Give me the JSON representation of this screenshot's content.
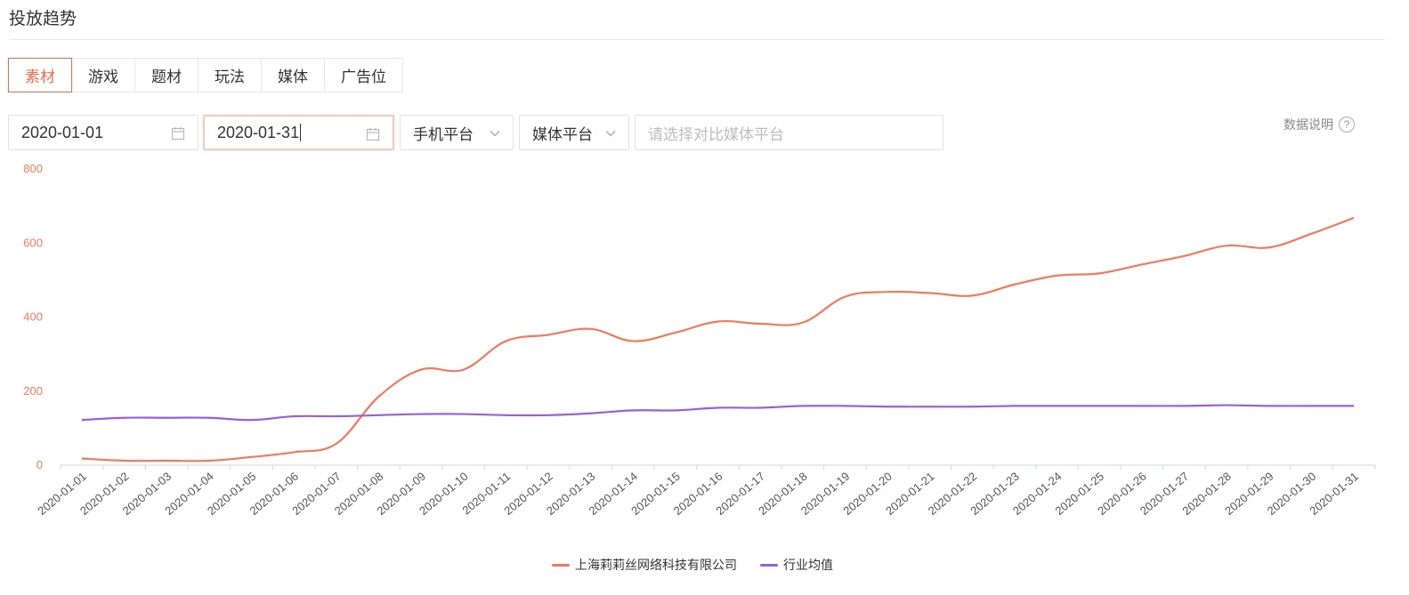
{
  "header": {
    "title": "投放趋势"
  },
  "tabs": [
    {
      "label": "素材",
      "active": true
    },
    {
      "label": "游戏",
      "active": false
    },
    {
      "label": "题材",
      "active": false
    },
    {
      "label": "玩法",
      "active": false
    },
    {
      "label": "媒体",
      "active": false
    },
    {
      "label": "广告位",
      "active": false
    }
  ],
  "filters": {
    "start_date": "2020-01-01",
    "end_date": "2020-01-31",
    "platform_select": "手机平台",
    "media_select": "媒体平台",
    "compare_placeholder": "请选择对比媒体平台"
  },
  "data_note": {
    "label": "数据说明",
    "icon": "help-icon"
  },
  "colors": {
    "accent": "#f06a4f",
    "series1": "#f47a5f",
    "series2": "#9c5ee0"
  },
  "chart_data": {
    "type": "line",
    "title": "",
    "xlabel": "",
    "ylabel": "",
    "ylim": [
      0,
      800
    ],
    "yticks": [
      0,
      200,
      400,
      600,
      800
    ],
    "grid": false,
    "legend_position": "bottom",
    "x": [
      "2020-01-01",
      "2020-01-02",
      "2020-01-03",
      "2020-01-04",
      "2020-01-05",
      "2020-01-06",
      "2020-01-07",
      "2020-01-08",
      "2020-01-09",
      "2020-01-10",
      "2020-01-11",
      "2020-01-12",
      "2020-01-13",
      "2020-01-14",
      "2020-01-15",
      "2020-01-16",
      "2020-01-17",
      "2020-01-18",
      "2020-01-19",
      "2020-01-20",
      "2020-01-21",
      "2020-01-22",
      "2020-01-23",
      "2020-01-24",
      "2020-01-25",
      "2020-01-26",
      "2020-01-27",
      "2020-01-28",
      "2020-01-29",
      "2020-01-30",
      "2020-01-31"
    ],
    "series": [
      {
        "name": "上海莉莉丝网络科技有限公司",
        "color": "#f47a5f",
        "values": [
          18,
          12,
          12,
          12,
          22,
          35,
          58,
          185,
          258,
          258,
          335,
          352,
          368,
          335,
          358,
          388,
          382,
          385,
          455,
          468,
          465,
          458,
          488,
          512,
          518,
          542,
          565,
          593,
          588,
          625,
          668
        ]
      },
      {
        "name": "行业均值",
        "color": "#9c5ee0",
        "values": [
          122,
          128,
          128,
          128,
          122,
          132,
          132,
          135,
          138,
          138,
          135,
          135,
          140,
          148,
          148,
          155,
          155,
          160,
          160,
          158,
          158,
          158,
          160,
          160,
          160,
          160,
          160,
          162,
          160,
          160,
          160
        ]
      }
    ]
  }
}
